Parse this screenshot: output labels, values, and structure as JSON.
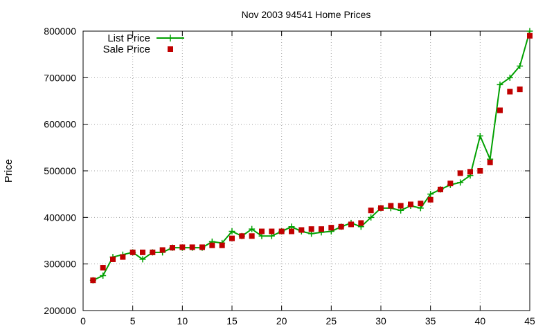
{
  "chart_data": {
    "type": "line",
    "title": "Nov 2003 94541 Home Prices",
    "xlabel": "",
    "ylabel": "Price",
    "xlim": [
      0,
      45
    ],
    "ylim": [
      200000,
      800000
    ],
    "x_ticks": [
      0,
      5,
      10,
      15,
      20,
      25,
      30,
      35,
      40,
      45
    ],
    "x_tick_labels": [
      "0",
      "5",
      "10",
      "15",
      "20",
      "25",
      "30",
      "35",
      "40",
      "45"
    ],
    "y_ticks": [
      200000,
      300000,
      400000,
      500000,
      600000,
      700000,
      800000
    ],
    "y_tick_labels": [
      "200000",
      "300000",
      "400000",
      "500000",
      "600000",
      "700000",
      "800000"
    ],
    "grid": true,
    "legend_position": "top-left",
    "series": [
      {
        "name": "List Price",
        "style": "line-plus",
        "color": "#00a000",
        "x": [
          1,
          2,
          3,
          4,
          5,
          6,
          7,
          8,
          9,
          10,
          11,
          12,
          13,
          14,
          15,
          16,
          17,
          18,
          19,
          20,
          21,
          22,
          23,
          24,
          25,
          26,
          27,
          28,
          29,
          30,
          31,
          32,
          33,
          34,
          35,
          36,
          37,
          38,
          39,
          40,
          41,
          42,
          43,
          44,
          45
        ],
        "y": [
          265000,
          275000,
          315000,
          320000,
          325000,
          310000,
          325000,
          325000,
          335000,
          335000,
          335000,
          335000,
          348000,
          345000,
          370000,
          360000,
          375000,
          360000,
          360000,
          370000,
          380000,
          370000,
          365000,
          368000,
          370000,
          380000,
          388000,
          380000,
          400000,
          420000,
          420000,
          415000,
          425000,
          420000,
          450000,
          460000,
          470000,
          475000,
          490000,
          575000,
          525000,
          685000,
          700000,
          725000,
          800000
        ]
      },
      {
        "name": "Sale Price",
        "style": "square-markers",
        "color": "#c00000",
        "x": [
          1,
          2,
          3,
          4,
          5,
          6,
          7,
          8,
          9,
          10,
          11,
          12,
          13,
          14,
          15,
          16,
          17,
          18,
          19,
          20,
          21,
          22,
          23,
          24,
          25,
          26,
          27,
          28,
          29,
          30,
          31,
          32,
          33,
          34,
          35,
          36,
          37,
          38,
          39,
          40,
          41,
          42,
          43,
          44,
          45
        ],
        "y": [
          265000,
          292000,
          310000,
          315000,
          325000,
          325000,
          325000,
          330000,
          335000,
          336000,
          336000,
          336000,
          340000,
          340000,
          355000,
          360000,
          360000,
          370000,
          370000,
          370000,
          370000,
          373000,
          375000,
          375000,
          378000,
          380000,
          385000,
          388000,
          415000,
          420000,
          425000,
          425000,
          428000,
          430000,
          438000,
          460000,
          473000,
          495000,
          498000,
          500000,
          518000,
          630000,
          670000,
          675000,
          790000
        ]
      }
    ]
  }
}
